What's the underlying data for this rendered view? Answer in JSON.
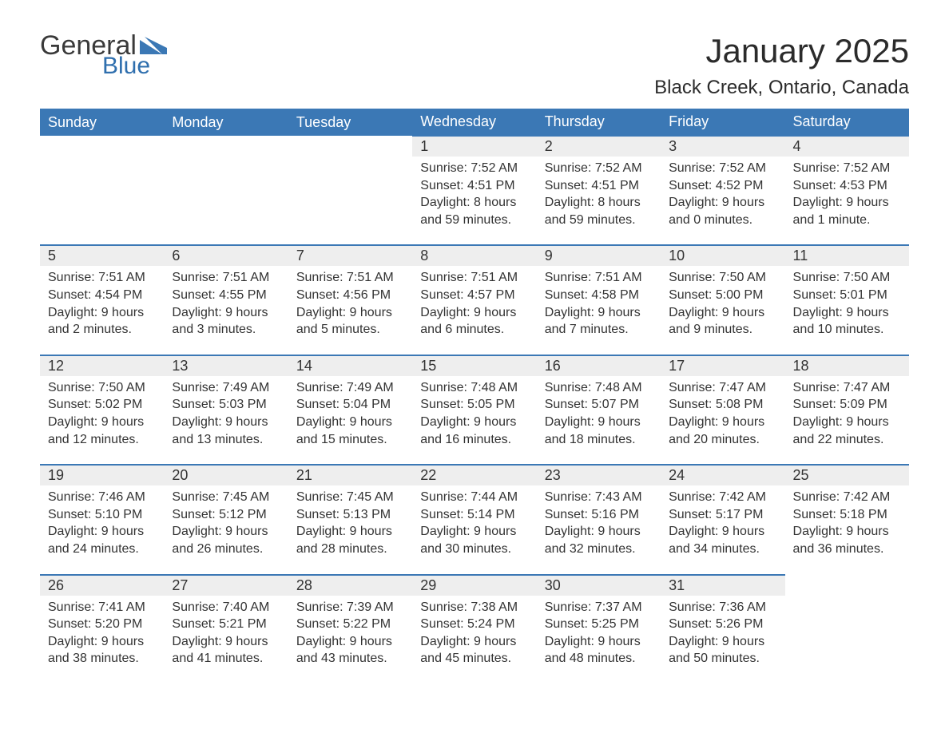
{
  "logo": {
    "word1": "General",
    "word2": "Blue",
    "tri_color": "#3b78b5"
  },
  "title": "January 2025",
  "location": "Black Creek, Ontario, Canada",
  "colors": {
    "header_bg": "#3b78b5",
    "header_text": "#ffffff",
    "daynum_bg": "#eeeeee",
    "daynum_border": "#3b78b5",
    "body_text": "#333333",
    "page_bg": "#ffffff"
  },
  "day_headers": [
    "Sunday",
    "Monday",
    "Tuesday",
    "Wednesday",
    "Thursday",
    "Friday",
    "Saturday"
  ],
  "weeks": [
    [
      null,
      null,
      null,
      {
        "n": "1",
        "sunrise": "Sunrise: 7:52 AM",
        "sunset": "Sunset: 4:51 PM",
        "d1": "Daylight: 8 hours",
        "d2": "and 59 minutes."
      },
      {
        "n": "2",
        "sunrise": "Sunrise: 7:52 AM",
        "sunset": "Sunset: 4:51 PM",
        "d1": "Daylight: 8 hours",
        "d2": "and 59 minutes."
      },
      {
        "n": "3",
        "sunrise": "Sunrise: 7:52 AM",
        "sunset": "Sunset: 4:52 PM",
        "d1": "Daylight: 9 hours",
        "d2": "and 0 minutes."
      },
      {
        "n": "4",
        "sunrise": "Sunrise: 7:52 AM",
        "sunset": "Sunset: 4:53 PM",
        "d1": "Daylight: 9 hours",
        "d2": "and 1 minute."
      }
    ],
    [
      {
        "n": "5",
        "sunrise": "Sunrise: 7:51 AM",
        "sunset": "Sunset: 4:54 PM",
        "d1": "Daylight: 9 hours",
        "d2": "and 2 minutes."
      },
      {
        "n": "6",
        "sunrise": "Sunrise: 7:51 AM",
        "sunset": "Sunset: 4:55 PM",
        "d1": "Daylight: 9 hours",
        "d2": "and 3 minutes."
      },
      {
        "n": "7",
        "sunrise": "Sunrise: 7:51 AM",
        "sunset": "Sunset: 4:56 PM",
        "d1": "Daylight: 9 hours",
        "d2": "and 5 minutes."
      },
      {
        "n": "8",
        "sunrise": "Sunrise: 7:51 AM",
        "sunset": "Sunset: 4:57 PM",
        "d1": "Daylight: 9 hours",
        "d2": "and 6 minutes."
      },
      {
        "n": "9",
        "sunrise": "Sunrise: 7:51 AM",
        "sunset": "Sunset: 4:58 PM",
        "d1": "Daylight: 9 hours",
        "d2": "and 7 minutes."
      },
      {
        "n": "10",
        "sunrise": "Sunrise: 7:50 AM",
        "sunset": "Sunset: 5:00 PM",
        "d1": "Daylight: 9 hours",
        "d2": "and 9 minutes."
      },
      {
        "n": "11",
        "sunrise": "Sunrise: 7:50 AM",
        "sunset": "Sunset: 5:01 PM",
        "d1": "Daylight: 9 hours",
        "d2": "and 10 minutes."
      }
    ],
    [
      {
        "n": "12",
        "sunrise": "Sunrise: 7:50 AM",
        "sunset": "Sunset: 5:02 PM",
        "d1": "Daylight: 9 hours",
        "d2": "and 12 minutes."
      },
      {
        "n": "13",
        "sunrise": "Sunrise: 7:49 AM",
        "sunset": "Sunset: 5:03 PM",
        "d1": "Daylight: 9 hours",
        "d2": "and 13 minutes."
      },
      {
        "n": "14",
        "sunrise": "Sunrise: 7:49 AM",
        "sunset": "Sunset: 5:04 PM",
        "d1": "Daylight: 9 hours",
        "d2": "and 15 minutes."
      },
      {
        "n": "15",
        "sunrise": "Sunrise: 7:48 AM",
        "sunset": "Sunset: 5:05 PM",
        "d1": "Daylight: 9 hours",
        "d2": "and 16 minutes."
      },
      {
        "n": "16",
        "sunrise": "Sunrise: 7:48 AM",
        "sunset": "Sunset: 5:07 PM",
        "d1": "Daylight: 9 hours",
        "d2": "and 18 minutes."
      },
      {
        "n": "17",
        "sunrise": "Sunrise: 7:47 AM",
        "sunset": "Sunset: 5:08 PM",
        "d1": "Daylight: 9 hours",
        "d2": "and 20 minutes."
      },
      {
        "n": "18",
        "sunrise": "Sunrise: 7:47 AM",
        "sunset": "Sunset: 5:09 PM",
        "d1": "Daylight: 9 hours",
        "d2": "and 22 minutes."
      }
    ],
    [
      {
        "n": "19",
        "sunrise": "Sunrise: 7:46 AM",
        "sunset": "Sunset: 5:10 PM",
        "d1": "Daylight: 9 hours",
        "d2": "and 24 minutes."
      },
      {
        "n": "20",
        "sunrise": "Sunrise: 7:45 AM",
        "sunset": "Sunset: 5:12 PM",
        "d1": "Daylight: 9 hours",
        "d2": "and 26 minutes."
      },
      {
        "n": "21",
        "sunrise": "Sunrise: 7:45 AM",
        "sunset": "Sunset: 5:13 PM",
        "d1": "Daylight: 9 hours",
        "d2": "and 28 minutes."
      },
      {
        "n": "22",
        "sunrise": "Sunrise: 7:44 AM",
        "sunset": "Sunset: 5:14 PM",
        "d1": "Daylight: 9 hours",
        "d2": "and 30 minutes."
      },
      {
        "n": "23",
        "sunrise": "Sunrise: 7:43 AM",
        "sunset": "Sunset: 5:16 PM",
        "d1": "Daylight: 9 hours",
        "d2": "and 32 minutes."
      },
      {
        "n": "24",
        "sunrise": "Sunrise: 7:42 AM",
        "sunset": "Sunset: 5:17 PM",
        "d1": "Daylight: 9 hours",
        "d2": "and 34 minutes."
      },
      {
        "n": "25",
        "sunrise": "Sunrise: 7:42 AM",
        "sunset": "Sunset: 5:18 PM",
        "d1": "Daylight: 9 hours",
        "d2": "and 36 minutes."
      }
    ],
    [
      {
        "n": "26",
        "sunrise": "Sunrise: 7:41 AM",
        "sunset": "Sunset: 5:20 PM",
        "d1": "Daylight: 9 hours",
        "d2": "and 38 minutes."
      },
      {
        "n": "27",
        "sunrise": "Sunrise: 7:40 AM",
        "sunset": "Sunset: 5:21 PM",
        "d1": "Daylight: 9 hours",
        "d2": "and 41 minutes."
      },
      {
        "n": "28",
        "sunrise": "Sunrise: 7:39 AM",
        "sunset": "Sunset: 5:22 PM",
        "d1": "Daylight: 9 hours",
        "d2": "and 43 minutes."
      },
      {
        "n": "29",
        "sunrise": "Sunrise: 7:38 AM",
        "sunset": "Sunset: 5:24 PM",
        "d1": "Daylight: 9 hours",
        "d2": "and 45 minutes."
      },
      {
        "n": "30",
        "sunrise": "Sunrise: 7:37 AM",
        "sunset": "Sunset: 5:25 PM",
        "d1": "Daylight: 9 hours",
        "d2": "and 48 minutes."
      },
      {
        "n": "31",
        "sunrise": "Sunrise: 7:36 AM",
        "sunset": "Sunset: 5:26 PM",
        "d1": "Daylight: 9 hours",
        "d2": "and 50 minutes."
      },
      null
    ]
  ]
}
